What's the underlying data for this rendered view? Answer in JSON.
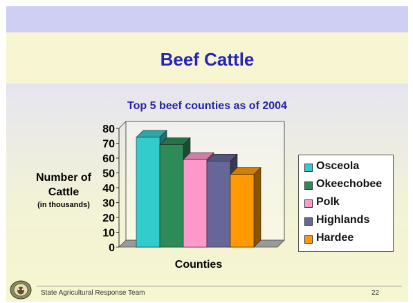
{
  "slide": {
    "title": "Beef Cattle",
    "footer_text": "State Agricultural Response Team",
    "page_number": "22"
  },
  "chart_data": {
    "type": "bar",
    "title": "Top 5 beef counties as of 2004",
    "ylabel": [
      "Number of",
      "Cattle",
      "(in thousands)"
    ],
    "xlabel": "Counties",
    "categories": [
      "Osceola",
      "Okeechobee",
      "Polk",
      "Highlands",
      "Hardee"
    ],
    "values": [
      74,
      69,
      59,
      58,
      49
    ],
    "colors": [
      "#33cccc",
      "#2e8b57",
      "#ff99cc",
      "#666699",
      "#ff9900"
    ],
    "ylim": [
      0,
      80
    ],
    "yticks": [
      "0",
      "10",
      "20",
      "30",
      "40",
      "50",
      "60",
      "70",
      "80"
    ],
    "grid": false,
    "style": "3d",
    "legend_position": "right"
  }
}
